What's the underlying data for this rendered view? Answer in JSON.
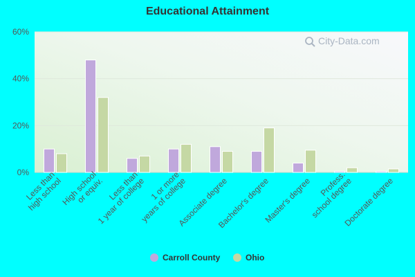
{
  "watermark": "City-Data.com",
  "chart_data": {
    "type": "bar",
    "title": "Educational Attainment",
    "categories": [
      "Less than\nhigh school",
      "High school\nor equiv.",
      "Less than\n1 year of college",
      "1 or more\nyears of college",
      "Associate degree",
      "Bachelor's degree",
      "Master's degree",
      "Profess.\nschool degree",
      "Doctorate degree"
    ],
    "series": [
      {
        "name": "Carroll County",
        "color": "#c0a8dc",
        "values": [
          10,
          48,
          6,
          10,
          11,
          9,
          4,
          0.5,
          0.5
        ]
      },
      {
        "name": "Ohio",
        "color": "#c5d8a4",
        "values": [
          8,
          32,
          7,
          12,
          9,
          19,
          9.5,
          2,
          1.5
        ]
      }
    ],
    "ylim": [
      0,
      60
    ],
    "yticks": [
      0,
      20,
      40,
      60
    ],
    "ytick_labels": [
      "0%",
      "20%",
      "40%",
      "60%"
    ],
    "grid": true,
    "legend_position": "bottom"
  }
}
